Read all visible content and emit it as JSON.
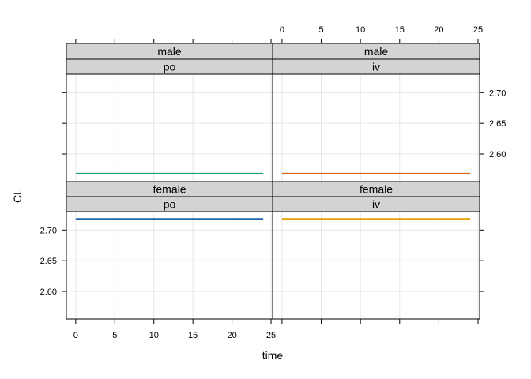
{
  "chart_data": {
    "type": "line",
    "layout": "lattice 2x2",
    "xlabel": "time",
    "ylabel": "CL",
    "xlim": [
      -1.2,
      25.2
    ],
    "ylim": [
      2.555,
      2.73
    ],
    "x_ticks": [
      0,
      5,
      10,
      15,
      20,
      25
    ],
    "y_ticks": [
      2.6,
      2.65,
      2.7
    ],
    "x_tick_labels": [
      "0",
      "5",
      "10",
      "15",
      "20",
      "25"
    ],
    "y_tick_labels": [
      "2.60",
      "2.65",
      "2.70"
    ],
    "grid": true,
    "panels": [
      {
        "strip_top": "male",
        "strip_bottom": "po",
        "color": "#1b9e77",
        "x": [
          0,
          24
        ],
        "y": [
          2.568,
          2.568
        ]
      },
      {
        "strip_top": "male",
        "strip_bottom": "iv",
        "color": "#d95f02",
        "x": [
          0,
          24
        ],
        "y": [
          2.568,
          2.568
        ]
      },
      {
        "strip_top": "female",
        "strip_bottom": "po",
        "color": "#1f65a8",
        "x": [
          0,
          24
        ],
        "y": [
          2.718,
          2.718
        ]
      },
      {
        "strip_top": "female",
        "strip_bottom": "iv",
        "color": "#e6a000",
        "x": [
          0,
          24
        ],
        "y": [
          2.718,
          2.718
        ]
      }
    ]
  }
}
